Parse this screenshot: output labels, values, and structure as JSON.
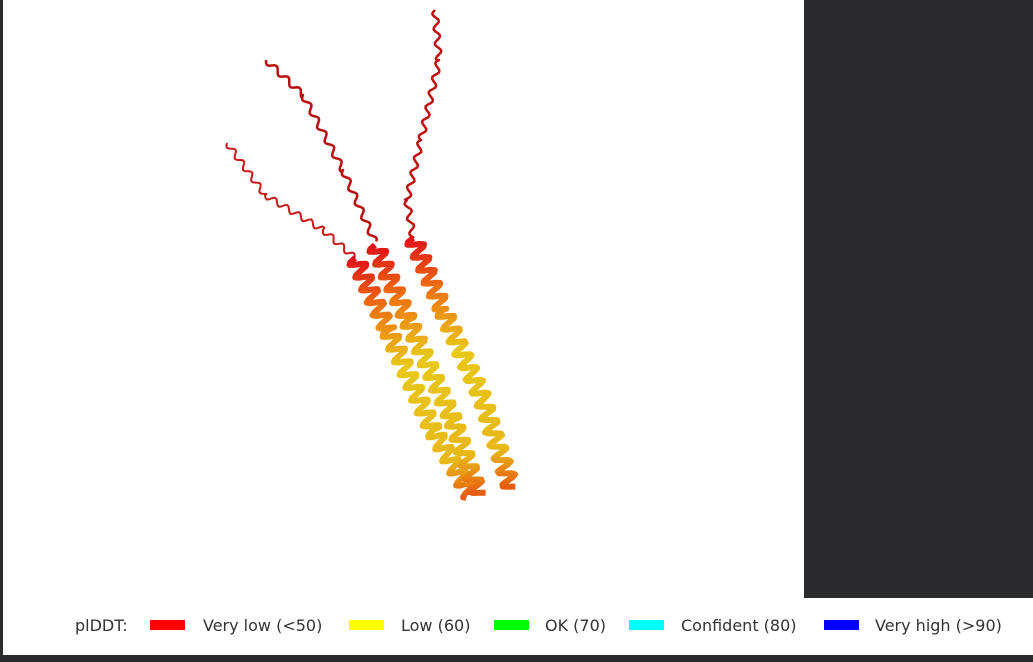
{
  "legend": {
    "title": "plDDT:",
    "items": [
      {
        "label": "Very low (<50)",
        "color": "#ff0000"
      },
      {
        "label": "Low (60)",
        "color": "#ffff00"
      },
      {
        "label": "OK (70)",
        "color": "#00ff00"
      },
      {
        "label": "Confident (80)",
        "color": "#00ffff"
      },
      {
        "label": "Very high (>90)",
        "color": "#0000ff"
      }
    ]
  }
}
